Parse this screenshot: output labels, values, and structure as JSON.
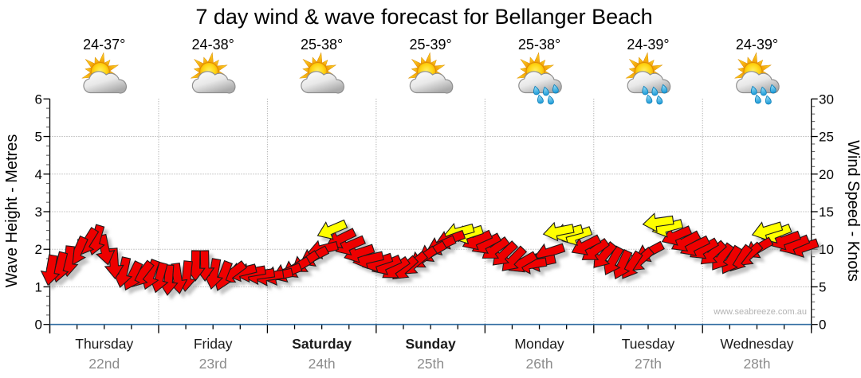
{
  "title": "7 day wind & wave forecast for Bellanger Beach",
  "watermark": "www.seabreeze.com.au",
  "left_axis": {
    "label": "Wave Height - Metres",
    "ticks": [
      0,
      1,
      2,
      3,
      4,
      5,
      6
    ],
    "min": 0,
    "max": 6,
    "minor_step": 0.25
  },
  "right_axis": {
    "label": "Wind Speed - Knots",
    "ticks": [
      0,
      5,
      10,
      15,
      20,
      25,
      30
    ],
    "min": 0,
    "max": 30,
    "minor_step": 1
  },
  "days": [
    {
      "name": "Thursday",
      "date": "22nd",
      "temp": "24-37°",
      "icon": "partly-cloudy",
      "bold": false
    },
    {
      "name": "Friday",
      "date": "23rd",
      "temp": "24-38°",
      "icon": "partly-cloudy",
      "bold": false
    },
    {
      "name": "Saturday",
      "date": "24th",
      "temp": "25-38°",
      "icon": "partly-cloudy",
      "bold": true
    },
    {
      "name": "Sunday",
      "date": "25th",
      "temp": "25-39°",
      "icon": "partly-cloudy",
      "bold": true
    },
    {
      "name": "Monday",
      "date": "26th",
      "temp": "25-38°",
      "icon": "showers",
      "bold": false
    },
    {
      "name": "Tuesday",
      "date": "27th",
      "temp": "24-39°",
      "icon": "showers",
      "bold": false
    },
    {
      "name": "Wednesday",
      "date": "28th",
      "temp": "24-39°",
      "icon": "showers",
      "bold": false
    }
  ],
  "colors": {
    "wind_normal": "#ee0000",
    "wind_strong": "#ffff00",
    "arrow_outline": "#1a1a1a",
    "wave_line": "#2d6a9f",
    "grid": "#999999",
    "axis": "#000000",
    "date_text": "#8c8c8c",
    "shadow": "#aaaaaa"
  },
  "chart_data": {
    "type": "wind-arrow-time-series",
    "x_axis": {
      "unit": "days",
      "interval_hours": 2,
      "arrows_per_day": 12
    },
    "wave_height_m": {
      "note": "flat line at zero across all 7 days",
      "value": 0
    },
    "wind_arrows_comment": "each arrow = [speed_knots, direction_deg_clockwise_from_up_that_arrow_points, strong_flag] ; 12 arrows per day for 7 days",
    "wind_arrows": [
      [
        7.2,
        190,
        0
      ],
      [
        7.6,
        194,
        0
      ],
      [
        8.4,
        186,
        0
      ],
      [
        9.7,
        204,
        0
      ],
      [
        10.9,
        212,
        0
      ],
      [
        11.2,
        196,
        0
      ],
      [
        9.9,
        168,
        0
      ],
      [
        8.1,
        176,
        0
      ],
      [
        6.9,
        192,
        0
      ],
      [
        6.4,
        206,
        0
      ],
      [
        6.6,
        218,
        0
      ],
      [
        6.6,
        200,
        0
      ],
      [
        6.2,
        195,
        0
      ],
      [
        5.9,
        184,
        0
      ],
      [
        6.1,
        172,
        0
      ],
      [
        6.4,
        186,
        0
      ],
      [
        7.8,
        181,
        0
      ],
      [
        7.8,
        179,
        0
      ],
      [
        6.7,
        190,
        0
      ],
      [
        6.4,
        201,
        0
      ],
      [
        6.8,
        233,
        0
      ],
      [
        7.0,
        256,
        0
      ],
      [
        6.9,
        260,
        0
      ],
      [
        6.6,
        262,
        0
      ],
      [
        6.4,
        262,
        0
      ],
      [
        6.5,
        258,
        0
      ],
      [
        6.9,
        248,
        0
      ],
      [
        7.5,
        240,
        0
      ],
      [
        8.2,
        235,
        0
      ],
      [
        9.0,
        242,
        0
      ],
      [
        10.0,
        256,
        0
      ],
      [
        12.6,
        247,
        1
      ],
      [
        11.4,
        244,
        0
      ],
      [
        10.5,
        247,
        0
      ],
      [
        9.5,
        252,
        0
      ],
      [
        8.7,
        257,
        0
      ],
      [
        8.3,
        252,
        0
      ],
      [
        7.9,
        246,
        0
      ],
      [
        7.4,
        235,
        0
      ],
      [
        7.4,
        228,
        0
      ],
      [
        8.0,
        230,
        0
      ],
      [
        8.8,
        235,
        0
      ],
      [
        9.6,
        240,
        0
      ],
      [
        10.5,
        246,
        0
      ],
      [
        11.3,
        250,
        0
      ],
      [
        12.3,
        255,
        1
      ],
      [
        12.0,
        252,
        1
      ],
      [
        11.2,
        246,
        0
      ],
      [
        10.7,
        242,
        0
      ],
      [
        10.0,
        234,
        0
      ],
      [
        9.3,
        226,
        0
      ],
      [
        8.6,
        224,
        0
      ],
      [
        8.2,
        240,
        0
      ],
      [
        8.0,
        261,
        0
      ],
      [
        8.3,
        258,
        0
      ],
      [
        9.6,
        252,
        0
      ],
      [
        12.4,
        259,
        1
      ],
      [
        12.2,
        255,
        1
      ],
      [
        11.8,
        250,
        1
      ],
      [
        10.5,
        243,
        0
      ],
      [
        9.8,
        234,
        0
      ],
      [
        9.1,
        220,
        0
      ],
      [
        8.4,
        208,
        0
      ],
      [
        7.9,
        205,
        0
      ],
      [
        7.8,
        213,
        0
      ],
      [
        8.5,
        228,
        0
      ],
      [
        9.6,
        242,
        0
      ],
      [
        13.6,
        262,
        1
      ],
      [
        12.9,
        255,
        1
      ],
      [
        11.8,
        247,
        0
      ],
      [
        11.0,
        242,
        0
      ],
      [
        10.4,
        244,
        0
      ],
      [
        10.0,
        240,
        0
      ],
      [
        9.4,
        228,
        0
      ],
      [
        8.9,
        216,
        0
      ],
      [
        8.5,
        211,
        0
      ],
      [
        8.7,
        218,
        0
      ],
      [
        9.2,
        228,
        0
      ],
      [
        10.1,
        240,
        0
      ],
      [
        12.5,
        253,
        1
      ],
      [
        12.1,
        249,
        1
      ],
      [
        11.2,
        250,
        0
      ],
      [
        10.6,
        247,
        0
      ],
      [
        10.2,
        251,
        0
      ]
    ]
  }
}
